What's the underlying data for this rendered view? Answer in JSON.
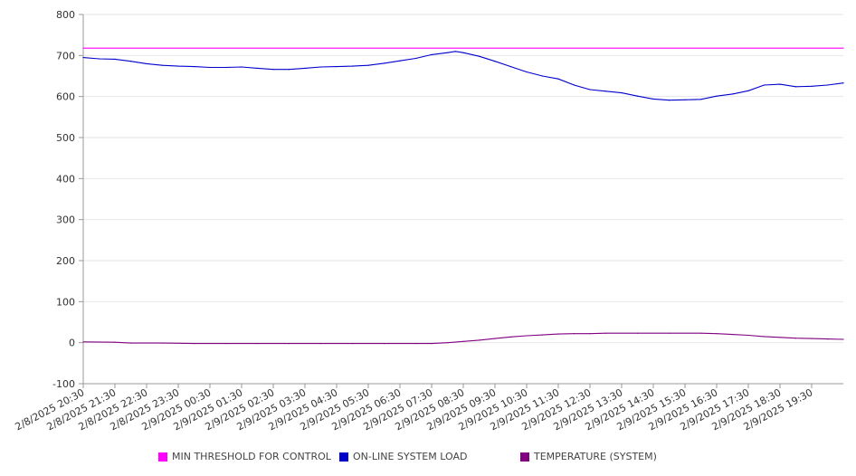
{
  "chart_data": {
    "type": "line",
    "title": "",
    "xlabel": "",
    "ylabel": "",
    "ylim": [
      -100,
      800
    ],
    "y_ticks": [
      -100,
      0,
      100,
      200,
      300,
      400,
      500,
      600,
      700,
      800
    ],
    "grid": true,
    "legend_position": "bottom",
    "x_tick_labels": [
      "2/8/2025 20:30",
      "2/8/2025 21:30",
      "2/8/2025 22:30",
      "2/8/2025 23:30",
      "2/9/2025 00:30",
      "2/9/2025 01:30",
      "2/9/2025 02:30",
      "2/9/2025 03:30",
      "2/9/2025 04:30",
      "2/9/2025 05:30",
      "2/9/2025 06:30",
      "2/9/2025 07:30",
      "2/9/2025 08:30",
      "2/9/2025 09:30",
      "2/9/2025 10:30",
      "2/9/2025 11:30",
      "2/9/2025 12:30",
      "2/9/2025 13:30",
      "2/9/2025 14:30",
      "2/9/2025 15:30",
      "2/9/2025 16:30",
      "2/9/2025 17:30",
      "2/9/2025 18:30",
      "2/9/2025 19:30"
    ],
    "x_range": [
      "2/8/2025 20:30",
      "2/9/2025 20:30"
    ],
    "series": [
      {
        "name": "MIN THRESHOLD FOR CONTROL",
        "color": "#ff00ff",
        "points": [
          [
            "2/8/2025 20:30",
            718
          ],
          [
            "2/9/2025 20:30",
            718
          ]
        ]
      },
      {
        "name": "ON-LINE SYSTEM LOAD",
        "color": "#0000cc",
        "points": [
          [
            "2/8/2025 20:30",
            695
          ],
          [
            "2/8/2025 21:00",
            692
          ],
          [
            "2/8/2025 21:30",
            691
          ],
          [
            "2/8/2025 22:00",
            686
          ],
          [
            "2/8/2025 22:30",
            680
          ],
          [
            "2/8/2025 23:00",
            676
          ],
          [
            "2/8/2025 23:30",
            674
          ],
          [
            "2/9/2025 00:00",
            673
          ],
          [
            "2/9/2025 00:30",
            671
          ],
          [
            "2/9/2025 01:00",
            671
          ],
          [
            "2/9/2025 01:30",
            672
          ],
          [
            "2/9/2025 02:00",
            669
          ],
          [
            "2/9/2025 02:30",
            666
          ],
          [
            "2/9/2025 03:00",
            666
          ],
          [
            "2/9/2025 03:30",
            669
          ],
          [
            "2/9/2025 04:00",
            672
          ],
          [
            "2/9/2025 04:30",
            673
          ],
          [
            "2/9/2025 05:00",
            674
          ],
          [
            "2/9/2025 05:30",
            676
          ],
          [
            "2/9/2025 06:00",
            681
          ],
          [
            "2/9/2025 06:30",
            687
          ],
          [
            "2/9/2025 07:00",
            693
          ],
          [
            "2/9/2025 07:30",
            702
          ],
          [
            "2/9/2025 08:00",
            707
          ],
          [
            "2/9/2025 08:15",
            710
          ],
          [
            "2/9/2025 08:30",
            707
          ],
          [
            "2/9/2025 09:00",
            698
          ],
          [
            "2/9/2025 09:30",
            686
          ],
          [
            "2/9/2025 10:00",
            673
          ],
          [
            "2/9/2025 10:30",
            660
          ],
          [
            "2/9/2025 11:00",
            650
          ],
          [
            "2/9/2025 11:30",
            643
          ],
          [
            "2/9/2025 12:00",
            628
          ],
          [
            "2/9/2025 12:30",
            617
          ],
          [
            "2/9/2025 13:00",
            613
          ],
          [
            "2/9/2025 13:30",
            609
          ],
          [
            "2/9/2025 14:00",
            601
          ],
          [
            "2/9/2025 14:30",
            594
          ],
          [
            "2/9/2025 15:00",
            591
          ],
          [
            "2/9/2025 15:30",
            592
          ],
          [
            "2/9/2025 16:00",
            593
          ],
          [
            "2/9/2025 16:30",
            601
          ],
          [
            "2/9/2025 17:00",
            606
          ],
          [
            "2/9/2025 17:30",
            614
          ],
          [
            "2/9/2025 18:00",
            628
          ],
          [
            "2/9/2025 18:30",
            630
          ],
          [
            "2/9/2025 19:00",
            624
          ],
          [
            "2/9/2025 19:30",
            625
          ],
          [
            "2/9/2025 20:00",
            628
          ],
          [
            "2/9/2025 20:30",
            633
          ]
        ]
      },
      {
        "name": "TEMPERATURE (SYSTEM)",
        "color": "#800080",
        "points": [
          [
            "2/8/2025 20:30",
            2
          ],
          [
            "2/8/2025 21:30",
            1
          ],
          [
            "2/8/2025 22:00",
            -1
          ],
          [
            "2/8/2025 23:00",
            -1
          ],
          [
            "2/9/2025 00:00",
            -2
          ],
          [
            "2/9/2025 01:00",
            -2
          ],
          [
            "2/9/2025 02:00",
            -2
          ],
          [
            "2/9/2025 03:00",
            -2
          ],
          [
            "2/9/2025 04:00",
            -2
          ],
          [
            "2/9/2025 05:00",
            -2
          ],
          [
            "2/9/2025 06:00",
            -2
          ],
          [
            "2/9/2025 07:00",
            -2
          ],
          [
            "2/9/2025 07:30",
            -2
          ],
          [
            "2/9/2025 08:00",
            0
          ],
          [
            "2/9/2025 08:30",
            3
          ],
          [
            "2/9/2025 09:00",
            6
          ],
          [
            "2/9/2025 09:30",
            10
          ],
          [
            "2/9/2025 10:00",
            14
          ],
          [
            "2/9/2025 10:30",
            17
          ],
          [
            "2/9/2025 11:00",
            19
          ],
          [
            "2/9/2025 11:30",
            21
          ],
          [
            "2/9/2025 12:00",
            22
          ],
          [
            "2/9/2025 12:30",
            22
          ],
          [
            "2/9/2025 13:00",
            23
          ],
          [
            "2/9/2025 14:00",
            23
          ],
          [
            "2/9/2025 15:00",
            23
          ],
          [
            "2/9/2025 16:00",
            23
          ],
          [
            "2/9/2025 16:30",
            22
          ],
          [
            "2/9/2025 17:00",
            20
          ],
          [
            "2/9/2025 17:30",
            18
          ],
          [
            "2/9/2025 18:00",
            15
          ],
          [
            "2/9/2025 18:30",
            13
          ],
          [
            "2/9/2025 19:00",
            11
          ],
          [
            "2/9/2025 19:30",
            10
          ],
          [
            "2/9/2025 20:00",
            9
          ],
          [
            "2/9/2025 20:30",
            8
          ]
        ]
      }
    ]
  }
}
